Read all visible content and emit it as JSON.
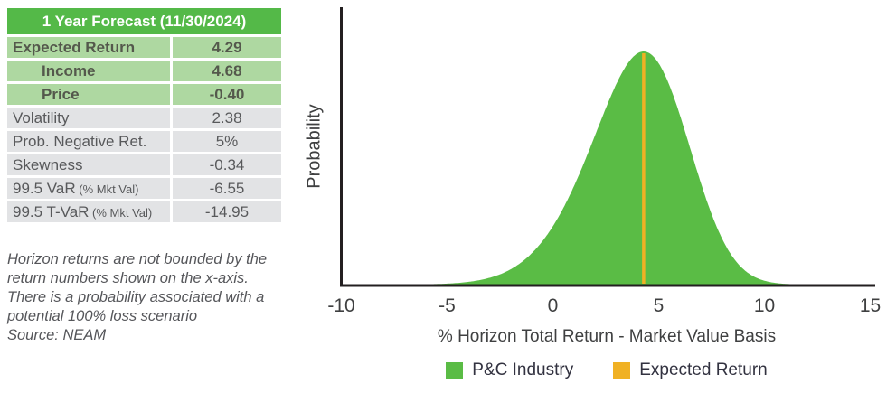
{
  "forecast_table": {
    "header": "1 Year Forecast (11/30/2024)",
    "rows": [
      {
        "label": "Expected Return",
        "value": "4.29",
        "style": "green",
        "indent": false
      },
      {
        "label": "Income",
        "value": "4.68",
        "style": "green",
        "indent": true
      },
      {
        "label": "Price",
        "value": "-0.40",
        "style": "green",
        "indent": true
      },
      {
        "label": "Volatility",
        "value": "2.38",
        "style": "gray",
        "indent": false
      },
      {
        "label": "Prob. Negative Ret.",
        "value": "5%",
        "style": "gray",
        "indent": false
      },
      {
        "label": "Skewness",
        "value": "-0.34",
        "style": "gray",
        "indent": false
      },
      {
        "label": "99.5 VaR",
        "label_suffix": "(% Mkt Val)",
        "value": "-6.55",
        "style": "gray",
        "indent": false
      },
      {
        "label": "99.5 T-VaR",
        "label_suffix": "(% Mkt Val)",
        "value": "-14.95",
        "style": "gray",
        "indent": false
      }
    ],
    "colors": {
      "header_bg": "#54b948",
      "header_text": "#ffffff",
      "green_row_bg": "#aed8a1",
      "green_row_text": "#54584c",
      "gray_row_bg": "#e2e3e5",
      "gray_row_text": "#58595b"
    }
  },
  "footnote": {
    "lines": [
      "Horizon returns are not bounded by the",
      "return numbers shown on the x-axis.",
      "There is a probability associated with a",
      "potential 100% loss scenario"
    ],
    "source": "Source: NEAM"
  },
  "chart_data": {
    "type": "area",
    "title": "",
    "ylabel": "Probability",
    "xlabel": "% Horizon Total Return - Market Value Basis",
    "x_ticks": [
      -10,
      -5,
      0,
      5,
      10,
      15
    ],
    "xlim": [
      -10,
      15
    ],
    "grid": false,
    "series": [
      {
        "name": "P&C Industry",
        "distribution": "skew-normal",
        "mean": 4.29,
        "stdev": 2.38,
        "skewness": -0.34,
        "color": "#5abc45"
      }
    ],
    "markers": [
      {
        "name": "Expected Return",
        "x": 4.29,
        "color": "#f0b124"
      }
    ],
    "legend": {
      "position": "bottom",
      "items": [
        {
          "label": "P&C Industry",
          "color": "#5abc45"
        },
        {
          "label": "Expected Return",
          "color": "#f0b124"
        }
      ]
    },
    "axis_color": "#231f20",
    "text_color": "#3f4041"
  }
}
